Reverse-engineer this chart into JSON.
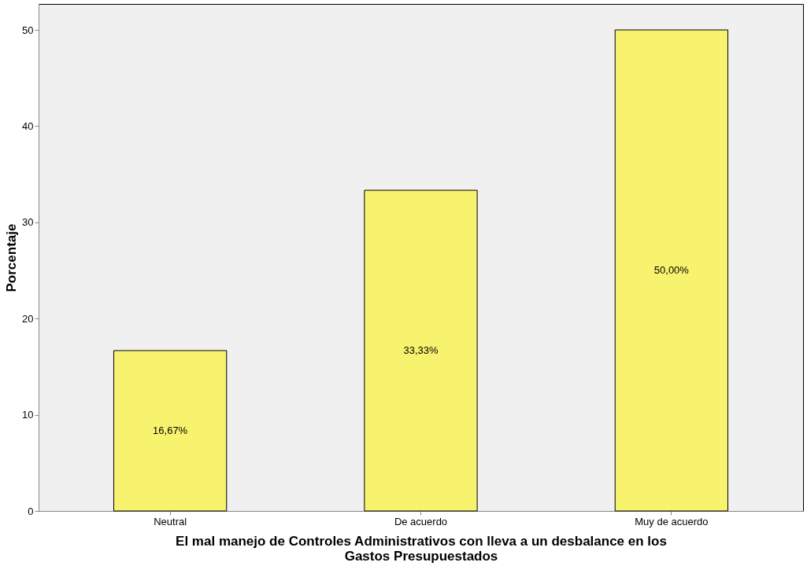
{
  "chart_data": {
    "type": "bar",
    "xlabel": "El mal manejo de Controles Administrativos con lleva a un desbalance en los Gastos Presupuestados",
    "ylabel": "Porcentaje",
    "categories": [
      "Neutral",
      "De acuerdo",
      "Muy de acuerdo"
    ],
    "values": [
      16.67,
      33.33,
      50.0
    ],
    "value_labels": [
      "16,67%",
      "33,33%",
      "50,00%"
    ],
    "color": "#f7f36f",
    "ylim": [
      0,
      52.7
    ],
    "yticks": [
      0,
      10,
      20,
      30,
      40,
      50
    ],
    "grid": false
  }
}
